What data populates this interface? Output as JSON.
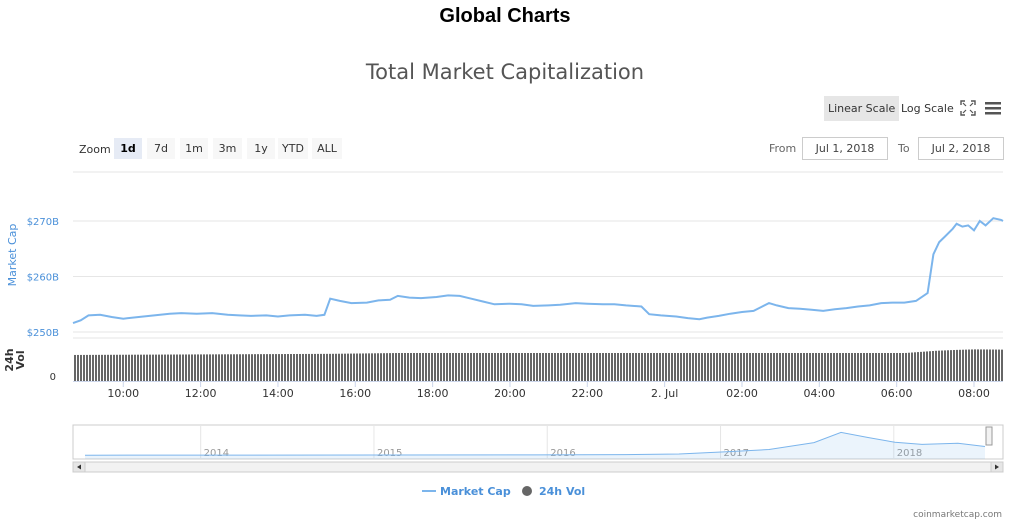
{
  "page": {
    "title": "Global Charts",
    "credit": "coinmarketcap.com"
  },
  "controls": {
    "scale_buttons": [
      "Linear Scale",
      "Log Scale"
    ],
    "active_scale": "Linear Scale",
    "zoom_label": "Zoom",
    "zoom_buttons": [
      "1d",
      "7d",
      "1m",
      "3m",
      "1y",
      "YTD",
      "ALL"
    ],
    "active_zoom": "1d",
    "from_label": "From",
    "from_value": "Jul 1, 2018",
    "to_label": "To",
    "to_value": "Jul 2, 2018",
    "icons": [
      "fullscreen-icon",
      "menu-icon"
    ]
  },
  "chart_data": {
    "type": "line",
    "title": "Total Market Capitalization",
    "colors": {
      "market_cap": "#7cb5ec",
      "volume": "#666666",
      "navigator_line": "#7cb5ec"
    },
    "x_tick_labels": [
      "10:00",
      "12:00",
      "14:00",
      "16:00",
      "18:00",
      "20:00",
      "22:00",
      "2. Jul",
      "02:00",
      "04:00",
      "06:00",
      "08:00"
    ],
    "x_range_hours": [
      -15.3,
      8.75
    ],
    "y_axis": {
      "label": "Market Cap",
      "tick_labels": [
        "$250B",
        "$260B",
        "$270B"
      ],
      "ticks": [
        250,
        260,
        270
      ],
      "range": [
        250,
        270
      ]
    },
    "volume_axis": {
      "label": "24h Vol",
      "tick_labels": [
        "0"
      ]
    },
    "series": [
      {
        "name": "Market Cap",
        "kind": "line",
        "points": [
          [
            -15.3,
            251.6
          ],
          [
            -15.1,
            252.1
          ],
          [
            -14.9,
            253.0
          ],
          [
            -14.6,
            253.1
          ],
          [
            -14.3,
            252.7
          ],
          [
            -14.0,
            252.4
          ],
          [
            -13.6,
            252.7
          ],
          [
            -13.2,
            253.0
          ],
          [
            -12.8,
            253.3
          ],
          [
            -12.5,
            253.4
          ],
          [
            -12.1,
            253.3
          ],
          [
            -11.7,
            253.4
          ],
          [
            -11.3,
            253.1
          ],
          [
            -11.0,
            253.0
          ],
          [
            -10.7,
            252.9
          ],
          [
            -10.3,
            253.0
          ],
          [
            -10.0,
            252.8
          ],
          [
            -9.7,
            253.0
          ],
          [
            -9.3,
            253.1
          ],
          [
            -9.0,
            252.9
          ],
          [
            -8.8,
            253.1
          ],
          [
            -8.65,
            256.0
          ],
          [
            -8.4,
            255.6
          ],
          [
            -8.1,
            255.2
          ],
          [
            -7.7,
            255.3
          ],
          [
            -7.4,
            255.7
          ],
          [
            -7.1,
            255.8
          ],
          [
            -6.9,
            256.5
          ],
          [
            -6.6,
            256.2
          ],
          [
            -6.3,
            256.1
          ],
          [
            -5.9,
            256.3
          ],
          [
            -5.6,
            256.6
          ],
          [
            -5.3,
            256.5
          ],
          [
            -5.0,
            256.0
          ],
          [
            -4.7,
            255.5
          ],
          [
            -4.4,
            255.0
          ],
          [
            -4.0,
            255.1
          ],
          [
            -3.7,
            255.0
          ],
          [
            -3.4,
            254.7
          ],
          [
            -3.0,
            254.8
          ],
          [
            -2.7,
            254.9
          ],
          [
            -2.3,
            255.2
          ],
          [
            -2.0,
            255.1
          ],
          [
            -1.6,
            255.0
          ],
          [
            -1.3,
            255.0
          ],
          [
            -1.0,
            254.8
          ],
          [
            -0.6,
            254.6
          ],
          [
            -0.4,
            253.2
          ],
          [
            -0.1,
            253.0
          ],
          [
            0.3,
            252.8
          ],
          [
            0.6,
            252.5
          ],
          [
            0.9,
            252.3
          ],
          [
            1.1,
            252.6
          ],
          [
            1.4,
            252.9
          ],
          [
            1.7,
            253.3
          ],
          [
            2.0,
            253.6
          ],
          [
            2.3,
            253.8
          ],
          [
            2.5,
            254.5
          ],
          [
            2.7,
            255.2
          ],
          [
            2.9,
            254.8
          ],
          [
            3.2,
            254.3
          ],
          [
            3.5,
            254.2
          ],
          [
            3.8,
            254.0
          ],
          [
            4.1,
            253.8
          ],
          [
            4.4,
            254.1
          ],
          [
            4.7,
            254.3
          ],
          [
            5.0,
            254.6
          ],
          [
            5.3,
            254.8
          ],
          [
            5.6,
            255.2
          ],
          [
            5.9,
            255.3
          ],
          [
            6.2,
            255.3
          ],
          [
            6.5,
            255.6
          ],
          [
            6.8,
            257.0
          ],
          [
            6.95,
            264.0
          ],
          [
            7.1,
            266.2
          ],
          [
            7.25,
            267.2
          ],
          [
            7.45,
            268.6
          ],
          [
            7.55,
            269.5
          ],
          [
            7.7,
            269.0
          ],
          [
            7.85,
            269.2
          ],
          [
            8.0,
            268.3
          ],
          [
            8.15,
            270.0
          ],
          [
            8.3,
            269.2
          ],
          [
            8.5,
            270.5
          ],
          [
            8.7,
            270.2
          ],
          [
            8.75,
            270.0
          ]
        ]
      },
      {
        "name": "24h Vol",
        "kind": "column",
        "relative_levels": [
          [
            -15.3,
            0.93
          ],
          [
            -8.65,
            0.97
          ],
          [
            -6.9,
            1.0
          ],
          [
            6.2,
            1.0
          ],
          [
            6.6,
            1.04
          ],
          [
            7.0,
            1.08
          ],
          [
            7.5,
            1.11
          ],
          [
            8.0,
            1.13
          ],
          [
            8.75,
            1.12
          ]
        ]
      }
    ],
    "navigator": {
      "year_labels": [
        "2014",
        "2015",
        "2016",
        "2017",
        "2018"
      ],
      "series_name": "Market Cap",
      "relative_points": [
        [
          0.0,
          0.06
        ],
        [
          0.5,
          0.07
        ],
        [
          0.6,
          0.08
        ],
        [
          0.66,
          0.1
        ],
        [
          0.71,
          0.17
        ],
        [
          0.76,
          0.25
        ],
        [
          0.81,
          0.48
        ],
        [
          0.84,
          0.82
        ],
        [
          0.87,
          0.65
        ],
        [
          0.9,
          0.49
        ],
        [
          0.93,
          0.42
        ],
        [
          0.97,
          0.46
        ],
        [
          1.0,
          0.35
        ]
      ]
    },
    "legend": {
      "items": [
        "Market Cap",
        "24h Vol"
      ],
      "position": "bottom-center"
    }
  }
}
